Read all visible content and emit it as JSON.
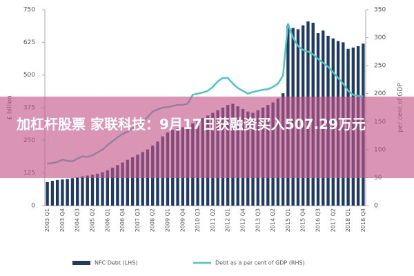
{
  "chart_data": {
    "type": "bar-line",
    "categories": [
      "2003 Q1",
      null,
      null,
      "2003 Q4",
      null,
      null,
      "2004 Q3",
      null,
      null,
      "2005 Q2",
      null,
      null,
      "2006 Q1",
      null,
      null,
      "2006 Q4",
      null,
      null,
      "2007 Q3",
      null,
      null,
      "2008 Q2",
      null,
      null,
      "2009 Q1",
      null,
      null,
      "2009 Q4",
      null,
      null,
      "2010 Q3",
      null,
      null,
      "2011 Q2",
      null,
      null,
      "2012 Q1",
      null,
      null,
      "2012 Q4",
      null,
      null,
      "2013 Q3",
      null,
      null,
      "2014 Q2",
      null,
      null,
      "2015 Q1",
      null,
      null,
      "2015 Q4",
      null,
      null,
      "2016 Q3",
      null,
      null,
      "2017 Q2",
      null,
      null,
      "2018 Q1",
      null,
      null,
      "2018 Q4"
    ],
    "series": [
      {
        "name": "NFC Debt (LHS)",
        "color": "#1f3b63",
        "kind": "bar",
        "values": [
          90,
          95,
          98,
          100,
          102,
          105,
          108,
          112,
          115,
          118,
          122,
          128,
          135,
          145,
          155,
          165,
          175,
          185,
          195,
          205,
          215,
          230,
          245,
          265,
          280,
          290,
          295,
          300,
          305,
          315,
          325,
          335,
          345,
          355,
          365,
          375,
          385,
          390,
          380,
          370,
          360,
          355,
          365,
          375,
          385,
          395,
          410,
          430,
          690,
          680,
          675,
          690,
          705,
          700,
          660,
          670,
          650,
          640,
          630,
          625,
          600,
          605,
          610,
          620
        ]
      },
      {
        "name": "Debt as a per cent of GDP (RHS)",
        "color": "#4fc3c0",
        "kind": "line",
        "axis": "y2",
        "values": [
          75,
          76,
          78,
          82,
          80,
          79,
          84,
          88,
          87,
          90,
          95,
          100,
          108,
          115,
          122,
          128,
          132,
          138,
          145,
          150,
          158,
          168,
          172,
          175,
          176,
          178,
          180,
          180,
          182,
          198,
          200,
          202,
          205,
          212,
          222,
          228,
          228,
          218,
          210,
          205,
          200,
          203,
          205,
          207,
          208,
          212,
          218,
          232,
          325,
          300,
          285,
          278,
          275,
          270,
          262,
          255,
          248,
          238,
          228,
          218,
          205,
          198,
          196,
          195
        ]
      }
    ],
    "ylabel": "£ billion",
    "y2label": "per cent of GDP",
    "ylim": [
      0,
      750
    ],
    "yticks": [
      0,
      125,
      250,
      375,
      500,
      625,
      750
    ],
    "y2lim": [
      0,
      350
    ],
    "y2ticks": [
      0,
      50,
      100,
      150,
      200,
      250,
      300,
      350
    ]
  },
  "overlay": {
    "text": "加杠杆股票 家联科技：9月17日获融资买入507.29万元"
  }
}
